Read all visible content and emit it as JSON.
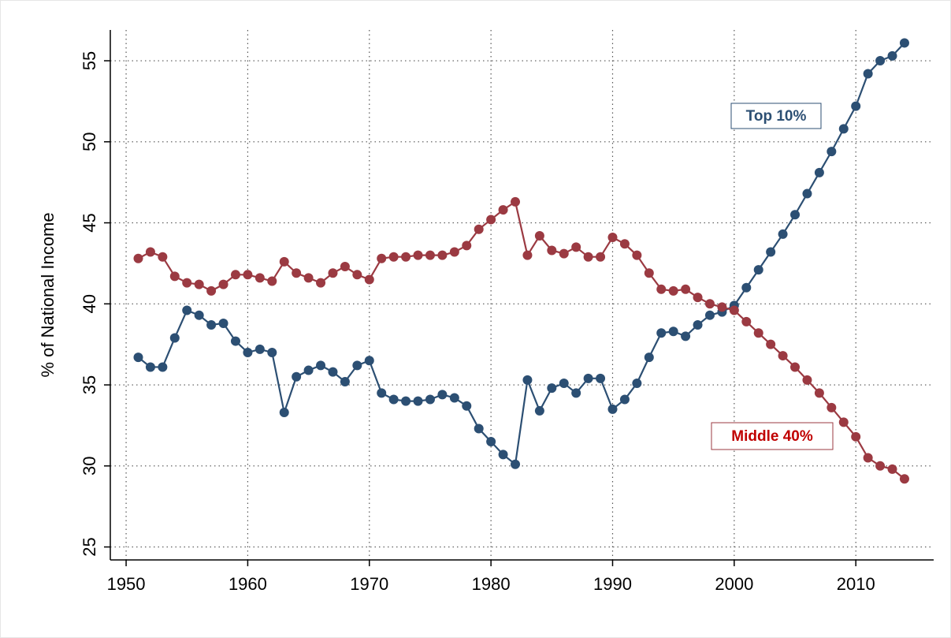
{
  "chart_data": {
    "type": "line",
    "y_label": "% of National Income",
    "x": [
      1951,
      1952,
      1953,
      1954,
      1955,
      1956,
      1957,
      1958,
      1959,
      1960,
      1961,
      1962,
      1963,
      1964,
      1965,
      1966,
      1967,
      1968,
      1969,
      1970,
      1971,
      1972,
      1973,
      1974,
      1975,
      1976,
      1977,
      1978,
      1979,
      1980,
      1981,
      1982,
      1983,
      1984,
      1985,
      1986,
      1987,
      1988,
      1989,
      1990,
      1991,
      1992,
      1993,
      1994,
      1995,
      1996,
      1997,
      1998,
      1999,
      2000,
      2001,
      2002,
      2003,
      2004,
      2005,
      2006,
      2007,
      2008,
      2009,
      2010,
      2011,
      2012,
      2013,
      2014
    ],
    "series": [
      {
        "name": "Top 10%",
        "color": "#2c4f73",
        "values": [
          36.7,
          36.1,
          36.1,
          37.9,
          39.6,
          39.3,
          38.7,
          38.8,
          37.7,
          37.0,
          37.2,
          37.0,
          33.3,
          35.5,
          35.9,
          36.2,
          35.8,
          35.2,
          36.2,
          36.5,
          34.5,
          34.1,
          34.0,
          34.0,
          34.1,
          34.4,
          34.2,
          33.7,
          32.3,
          31.5,
          30.7,
          30.1,
          35.3,
          33.4,
          34.8,
          35.1,
          34.5,
          35.4,
          35.4,
          33.5,
          34.1,
          35.1,
          36.7,
          38.2,
          38.3,
          38.0,
          38.7,
          39.3,
          39.5,
          39.9,
          41.0,
          42.1,
          43.2,
          44.3,
          45.5,
          46.8,
          48.1,
          49.4,
          50.8,
          52.2,
          54.2,
          55.0,
          55.3,
          56.1
        ]
      },
      {
        "name": "Middle 40%",
        "color": "#9b3a42",
        "values": [
          42.8,
          43.2,
          42.9,
          41.7,
          41.3,
          41.2,
          40.8,
          41.2,
          41.8,
          41.8,
          41.6,
          41.4,
          42.6,
          41.9,
          41.6,
          41.3,
          41.9,
          42.3,
          41.8,
          41.5,
          42.8,
          42.9,
          42.9,
          43.0,
          43.0,
          43.0,
          43.2,
          43.6,
          44.6,
          45.2,
          45.8,
          46.3,
          43.0,
          44.2,
          43.3,
          43.1,
          43.5,
          42.9,
          42.9,
          44.1,
          43.7,
          43.0,
          41.9,
          40.9,
          40.8,
          40.9,
          40.4,
          40.0,
          39.8,
          39.6,
          38.9,
          38.2,
          37.5,
          36.8,
          36.1,
          35.3,
          34.5,
          33.6,
          32.7,
          31.8,
          30.5,
          30.0,
          29.8,
          29.2
        ]
      }
    ],
    "xlim": [
      1948.7,
      2016.4
    ],
    "xticks": [
      1950,
      1960,
      1970,
      1980,
      1990,
      2000,
      2010
    ],
    "ylim": [
      24.2,
      56.9
    ],
    "yticks": [
      25,
      30,
      35,
      40,
      45,
      50,
      55
    ],
    "grid": true
  }
}
